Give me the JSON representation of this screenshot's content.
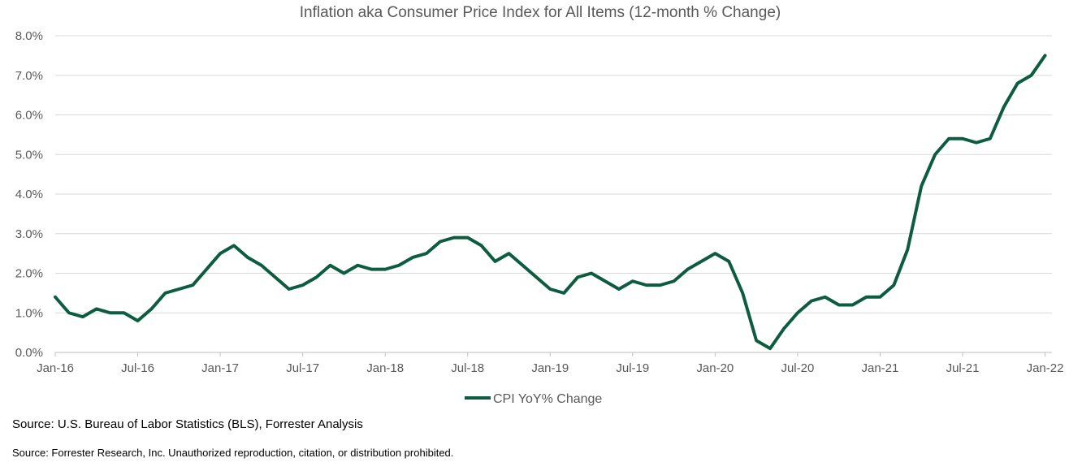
{
  "chart_data": {
    "type": "line",
    "title": "Inflation aka Consumer Price Index for All Items (12-month % Change)",
    "xlabel": "",
    "ylabel": "",
    "y_tick_labels": [
      "0.0%",
      "1.0%",
      "2.0%",
      "3.0%",
      "4.0%",
      "5.0%",
      "6.0%",
      "7.0%",
      "8.0%"
    ],
    "ylim": [
      0,
      8
    ],
    "x_tick_labels": [
      "Jan-16",
      "Jul-16",
      "Jan-17",
      "Jul-17",
      "Jan-18",
      "Jul-18",
      "Jan-19",
      "Jul-19",
      "Jan-20",
      "Jul-20",
      "Jan-21",
      "Jul-21",
      "Jan-22"
    ],
    "x_tick_every": 6,
    "grid": "horizontal",
    "legend_position": "bottom",
    "series": [
      {
        "name": "CPI YoY% Change",
        "color": "#0d5c3f",
        "start": "Jan-16",
        "frequency": "monthly",
        "values": [
          1.4,
          1.0,
          0.9,
          1.1,
          1.0,
          1.0,
          0.8,
          1.1,
          1.5,
          1.6,
          1.7,
          2.1,
          2.5,
          2.7,
          2.4,
          2.2,
          1.9,
          1.6,
          1.7,
          1.9,
          2.2,
          2.0,
          2.2,
          2.1,
          2.1,
          2.2,
          2.4,
          2.5,
          2.8,
          2.9,
          2.9,
          2.7,
          2.3,
          2.5,
          2.2,
          1.9,
          1.6,
          1.5,
          1.9,
          2.0,
          1.8,
          1.6,
          1.8,
          1.7,
          1.7,
          1.8,
          2.1,
          2.3,
          2.5,
          2.3,
          1.5,
          0.3,
          0.1,
          0.6,
          1.0,
          1.3,
          1.4,
          1.2,
          1.2,
          1.4,
          1.4,
          1.7,
          2.6,
          4.2,
          5.0,
          5.4,
          5.4,
          5.3,
          5.4,
          6.2,
          6.8,
          7.0,
          7.5
        ]
      }
    ]
  },
  "footer": {
    "source_line_1": "Source: U.S. Bureau of Labor Statistics (BLS), Forrester Analysis",
    "source_line_2": "Source: Forrester Research, Inc. Unauthorized reproduction, citation, or distribution prohibited."
  }
}
